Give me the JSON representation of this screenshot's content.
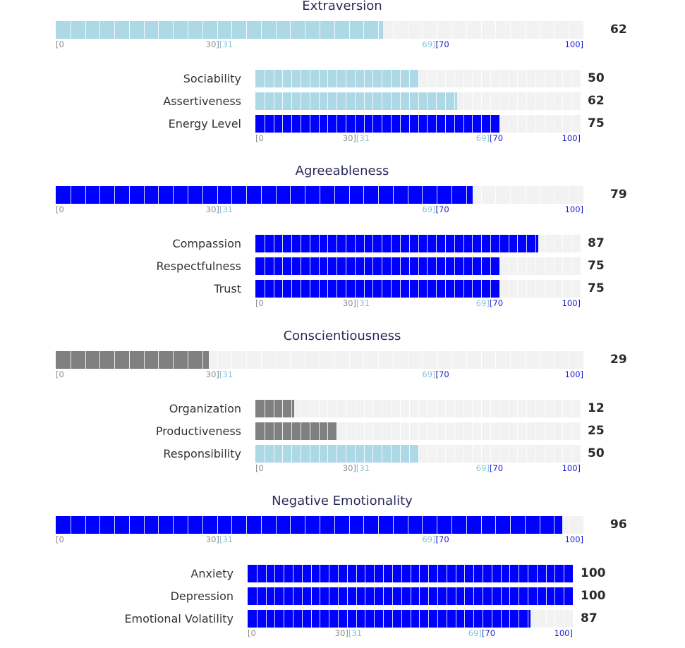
{
  "colors": {
    "low": "#808080",
    "mid": "#add8e6",
    "high": "#0000ff",
    "track": "#f2f2f2"
  },
  "tick_labels": {
    "start": "[0",
    "low_end": "30]",
    "mid_start": "[31",
    "mid_end": "69]",
    "high_start": "[70",
    "end": "100]"
  },
  "chart_data": {
    "type": "bar",
    "orientation": "horizontal",
    "xlim": [
      0,
      100
    ],
    "color_bands": [
      {
        "range": [
          0,
          30
        ],
        "color": "#808080"
      },
      {
        "range": [
          31,
          69
        ],
        "color": "#add8e6"
      },
      {
        "range": [
          70,
          100
        ],
        "color": "#0000ff"
      }
    ],
    "groups": [
      {
        "title": "Extraversion",
        "value": 62,
        "facets": [
          {
            "label": "Sociability",
            "value": 50
          },
          {
            "label": "Assertiveness",
            "value": 62
          },
          {
            "label": "Energy Level",
            "value": 75
          }
        ]
      },
      {
        "title": "Agreeableness",
        "value": 79,
        "facets": [
          {
            "label": "Compassion",
            "value": 87
          },
          {
            "label": "Respectfulness",
            "value": 75
          },
          {
            "label": "Trust",
            "value": 75
          }
        ]
      },
      {
        "title": "Conscientiousness",
        "value": 29,
        "facets": [
          {
            "label": "Organization",
            "value": 12
          },
          {
            "label": "Productiveness",
            "value": 25
          },
          {
            "label": "Responsibility",
            "value": 50
          }
        ]
      },
      {
        "title": "Negative Emotionality",
        "value": 96,
        "facets": [
          {
            "label": "Anxiety",
            "value": 100
          },
          {
            "label": "Depression",
            "value": 100
          },
          {
            "label": "Emotional Volatility",
            "value": 87
          }
        ]
      }
    ]
  }
}
